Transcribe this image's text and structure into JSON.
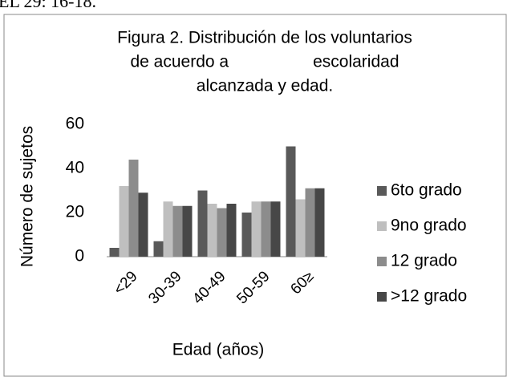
{
  "header": "EL 29: 16-18.",
  "chart_data": {
    "type": "bar",
    "title": [
      "Figura 2. Distribución de los voluntarios",
      "de acuerdo a                  escolaridad",
      "alcanzada y edad."
    ],
    "x_label": "Edad (años)",
    "y_label": "Número de sujetos",
    "categories": [
      "<29",
      "30-39",
      "40-49",
      "50-59",
      "60≥"
    ],
    "series": [
      {
        "name": "6to grado",
        "color": "#595959",
        "values": [
          4,
          7,
          30,
          20,
          50
        ]
      },
      {
        "name": "9no grado",
        "color": "#bfbfbf",
        "values": [
          32,
          25,
          24,
          25,
          26
        ]
      },
      {
        "name": "12 grado",
        "color": "#8c8c8c",
        "values": [
          44,
          23,
          22,
          25,
          31
        ]
      },
      {
        "name": ">12 grado",
        "color": "#474747",
        "values": [
          29,
          23,
          24,
          25,
          31
        ]
      }
    ],
    "ylim": [
      0,
      60
    ],
    "yticks": [
      0,
      20,
      40,
      60
    ],
    "legend": "right"
  }
}
